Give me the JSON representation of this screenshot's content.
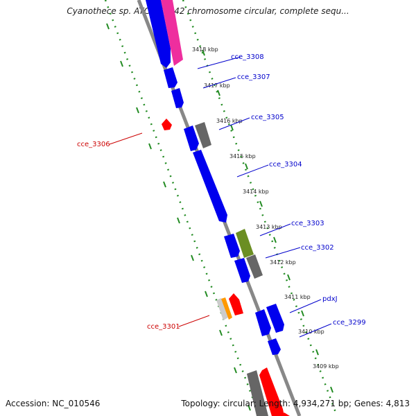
{
  "title": "Cyanothece sp. ATCC 51142 chromosome circular, complete sequ...",
  "footer": {
    "accession": "Accession: NC_010546",
    "summary": "Topology: circular; Length: 4,934,271 bp; Genes: 4,813"
  },
  "colors": {
    "backbone": "#888888",
    "forward_gene": "#0000ee",
    "reverse_gene": "#ff0000",
    "grey_feature": "#666666",
    "pink_feature": "#ee2e9e",
    "olive_feature": "#6b8e23",
    "orange_feature": "#ff9900",
    "tick": "#228b22",
    "forward_label": "#0000cc",
    "reverse_label": "#cc0000"
  },
  "kbp_labels": [
    "3418 kbp",
    "3417 kbp",
    "3416 kbp",
    "3415 kbp",
    "3414 kbp",
    "3413 kbp",
    "3412 kbp",
    "3411 kbp",
    "3410 kbp",
    "3409 kbp"
  ],
  "gene_labels": {
    "forward": [
      "cce_3308",
      "cce_3307",
      "cce_3305",
      "cce_3304",
      "cce_3303",
      "cce_3302",
      "pdxJ",
      "cce_3299"
    ],
    "reverse": [
      "cce_3306",
      "cce_3301"
    ]
  }
}
